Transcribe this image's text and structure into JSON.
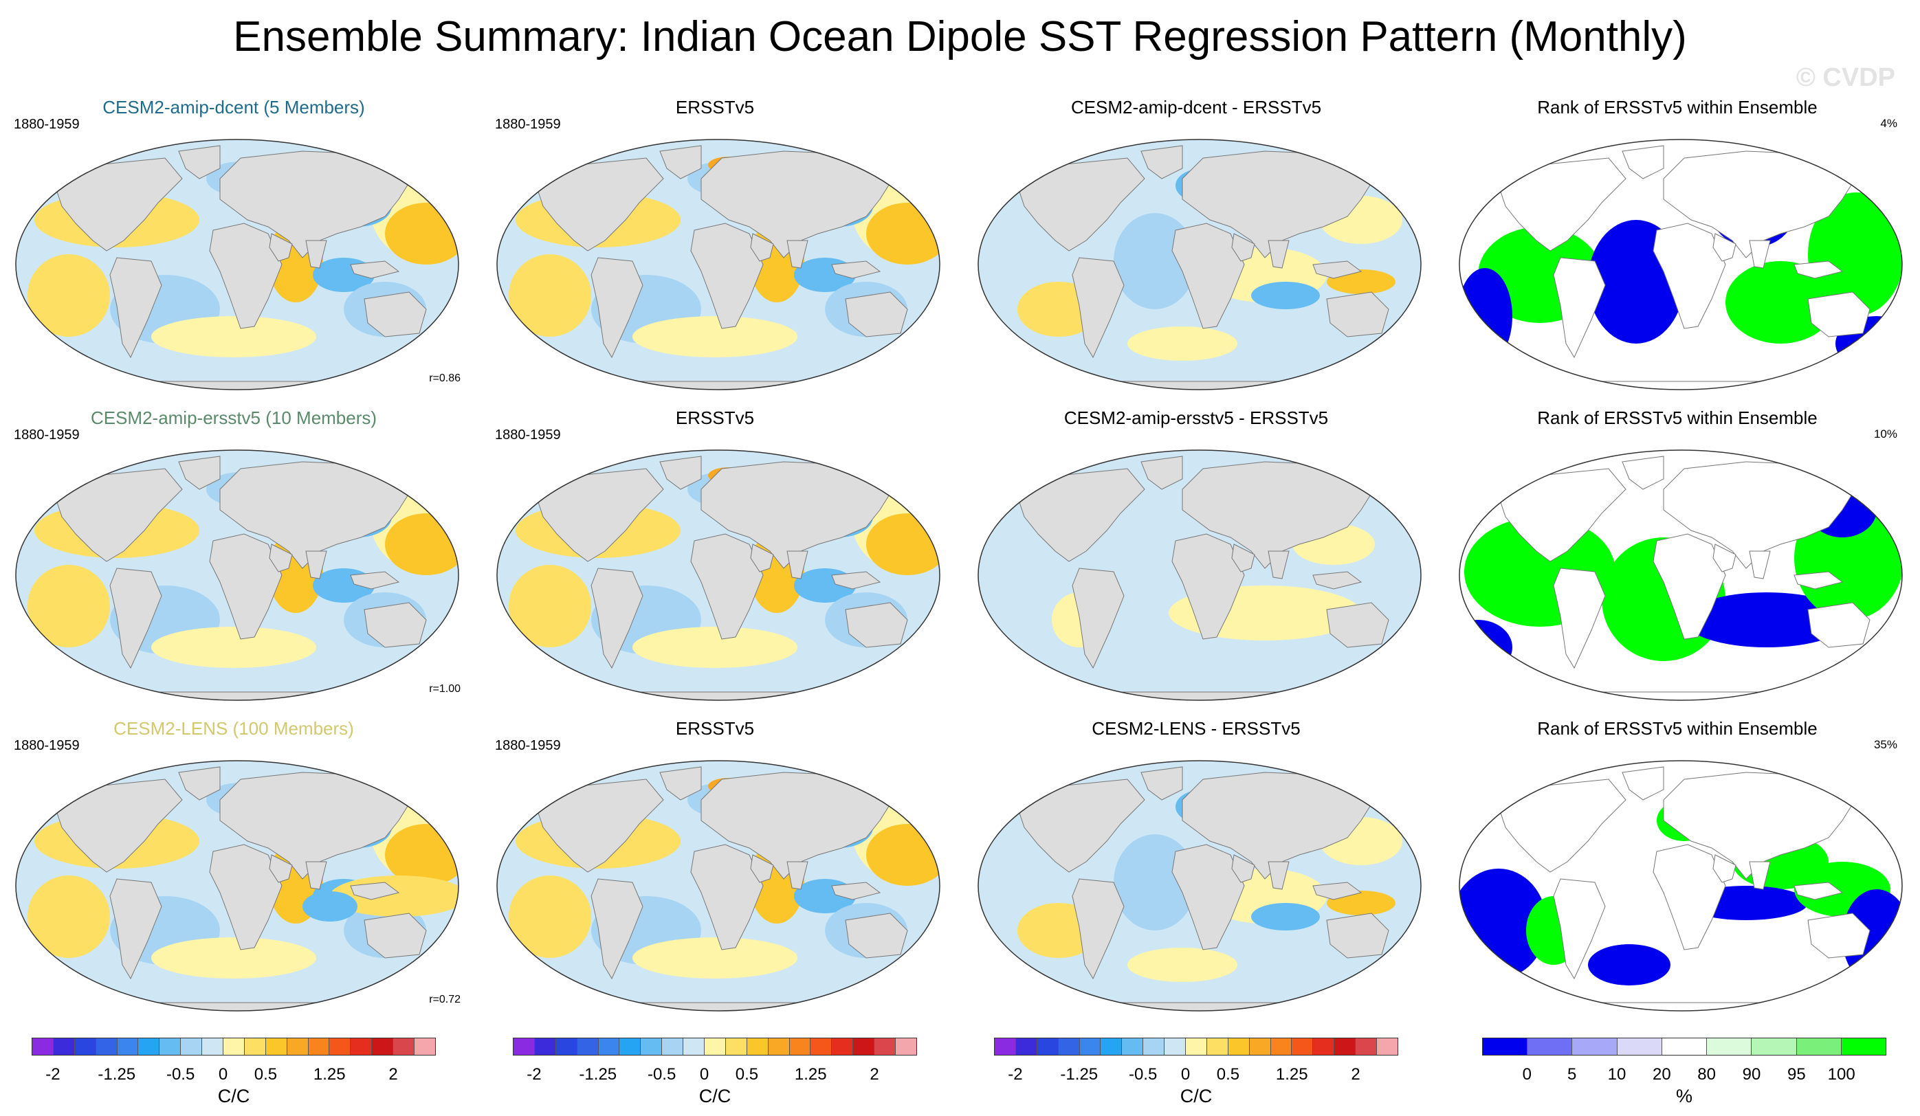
{
  "title": "Ensemble Summary: Indian Ocean Dipole SST Regression Pattern (Monthly)",
  "watermark": "© CVDP",
  "colors": {
    "ocean_neutral": "#cfe6f5",
    "land": "#dddddd",
    "rank_low": "#0000ee",
    "rank_high": "#00ff00"
  },
  "rows": [
    {
      "ensemble": {
        "title": "CESM2-amip-dcent (5 Members)",
        "title_color": "#1f6b8c",
        "period": "1880-1959",
        "r_label": "r=0.86"
      },
      "obs": {
        "title": "ERSSTv5",
        "period": "1880-1959"
      },
      "diff": {
        "title": "CESM2-amip-dcent - ERSSTv5"
      },
      "rank": {
        "title": "Rank of ERSSTv5 within Ensemble",
        "pct": "4%"
      }
    },
    {
      "ensemble": {
        "title": "CESM2-amip-ersstv5 (10 Members)",
        "title_color": "#5b8a6a",
        "period": "1880-1959",
        "r_label": "r=1.00"
      },
      "obs": {
        "title": "ERSSTv5",
        "period": "1880-1959"
      },
      "diff": {
        "title": "CESM2-amip-ersstv5 - ERSSTv5"
      },
      "rank": {
        "title": "Rank of ERSSTv5 within Ensemble",
        "pct": "10%"
      }
    },
    {
      "ensemble": {
        "title": "CESM2-LENS (100 Members)",
        "title_color": "#d2c86e",
        "period": "1880-1959",
        "r_label": "r=0.72"
      },
      "obs": {
        "title": "ERSSTv5",
        "period": "1880-1959"
      },
      "diff": {
        "title": "CESM2-LENS - ERSSTv5"
      },
      "rank": {
        "title": "Rank of ERSSTv5 within Ensemble",
        "pct": "35%"
      }
    }
  ],
  "colorbar_regression": {
    "unit": "C/C",
    "tick_labels": [
      "-2",
      "-1.25",
      "-0.5",
      "0",
      "0.5",
      "1.25",
      "2"
    ],
    "colors": [
      "#8a2be2",
      "#3b2bdb",
      "#2a46e0",
      "#3464e6",
      "#3a85ee",
      "#26a4f4",
      "#64bcf2",
      "#a8d4f3",
      "#cfe6f5",
      "#fff5a8",
      "#fde063",
      "#fbc62a",
      "#f9a825",
      "#f7841c",
      "#f5561a",
      "#e52e1e",
      "#cc1618",
      "#d9474d",
      "#f3a6ab"
    ]
  },
  "colorbar_rank": {
    "unit": "%",
    "tick_labels": [
      "0",
      "5",
      "10",
      "20",
      "80",
      "90",
      "95",
      "100"
    ],
    "colors": [
      "#0000ee",
      "#6f6ff5",
      "#a8a8f8",
      "#dadaf8",
      "#ffffff",
      "#dcfadc",
      "#b5f5b5",
      "#7af07a",
      "#00ff00"
    ]
  },
  "chart_data": {
    "type": "heatmap",
    "title": "Ensemble Summary: Indian Ocean Dipole SST Regression Pattern (Monthly)",
    "projection": "Robinson-like global maps",
    "period": "1880-1959",
    "units": "C/C",
    "color_levels": [
      -2,
      -1.75,
      -1.5,
      -1.25,
      -1,
      -0.75,
      -0.5,
      -0.25,
      0,
      0.25,
      0.5,
      0.75,
      1,
      1.25,
      1.5,
      1.75,
      2
    ],
    "rank_levels_percent": [
      0,
      5,
      10,
      20,
      80,
      90,
      95,
      100
    ],
    "panels": [
      {
        "row": 1,
        "type": "ensemble_mean",
        "name": "CESM2-amip-dcent (5 Members)",
        "pattern_correlation": 0.86
      },
      {
        "row": 1,
        "type": "observations",
        "name": "ERSSTv5"
      },
      {
        "row": 1,
        "type": "difference",
        "name": "CESM2-amip-dcent - ERSSTv5"
      },
      {
        "row": 1,
        "type": "rank",
        "name": "Rank of ERSSTv5 within Ensemble",
        "percent": 4
      },
      {
        "row": 2,
        "type": "ensemble_mean",
        "name": "CESM2-amip-ersstv5 (10 Members)",
        "pattern_correlation": 1.0
      },
      {
        "row": 2,
        "type": "observations",
        "name": "ERSSTv5"
      },
      {
        "row": 2,
        "type": "difference",
        "name": "CESM2-amip-ersstv5 - ERSSTv5"
      },
      {
        "row": 2,
        "type": "rank",
        "name": "Rank of ERSSTv5 within Ensemble",
        "percent": 10
      },
      {
        "row": 3,
        "type": "ensemble_mean",
        "name": "CESM2-LENS (100 Members)",
        "pattern_correlation": 0.72
      },
      {
        "row": 3,
        "type": "observations",
        "name": "ERSSTv5"
      },
      {
        "row": 3,
        "type": "difference",
        "name": "CESM2-LENS - ERSSTv5"
      },
      {
        "row": 3,
        "type": "rank",
        "name": "Rank of ERSSTv5 within Ensemble",
        "percent": 35
      }
    ]
  }
}
